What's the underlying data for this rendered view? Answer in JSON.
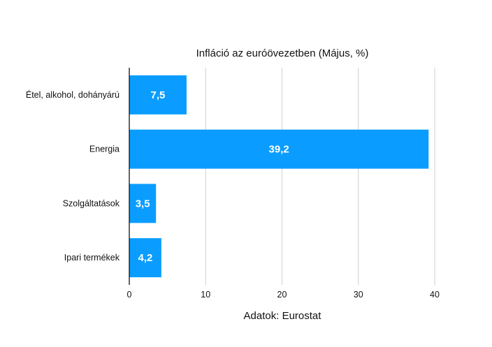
{
  "chart_data": {
    "type": "bar",
    "orientation": "horizontal",
    "title": "Infláció az euróövezetben (Május, %)",
    "source": "Adatok: Eurostat",
    "categories": [
      "Étel, alkohol, dohányárú",
      "Energia",
      "Szolgáltatások",
      "Ipari termékek"
    ],
    "values": [
      7.5,
      39.2,
      3.5,
      4.2
    ],
    "value_labels": [
      "7,5",
      "39,2",
      "3,5",
      "4,2"
    ],
    "xlim": [
      0,
      40
    ],
    "xticks": [
      0,
      10,
      20,
      30,
      40
    ],
    "xtick_labels": [
      "0",
      "10",
      "20",
      "30",
      "40"
    ],
    "grid": true,
    "bar_color": "#0a9dff",
    "legend": "none"
  }
}
